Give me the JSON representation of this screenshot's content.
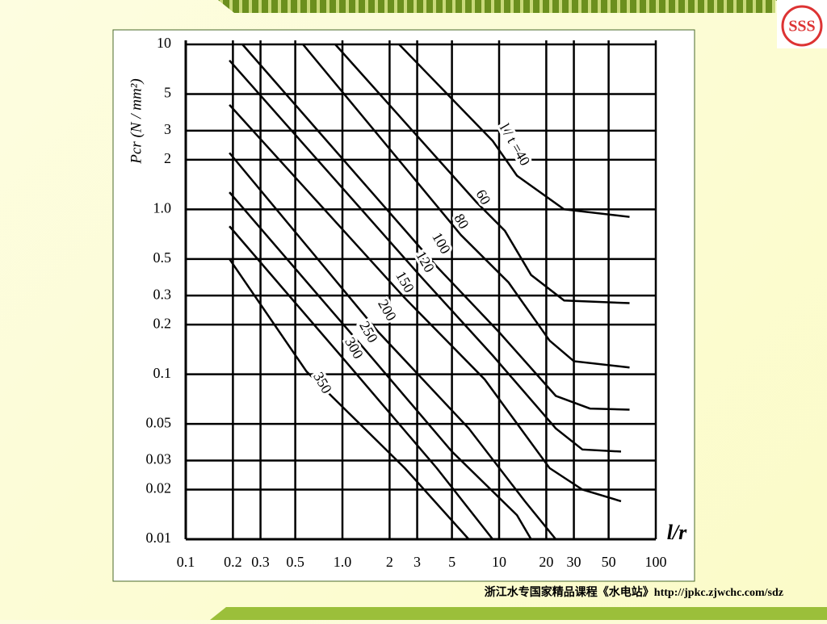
{
  "chart_data": {
    "type": "line",
    "x_label": "l/r",
    "y_label": "Pcr (N / mm²)",
    "xlog": true,
    "ylog": true,
    "grid": true,
    "color": "#000000",
    "xlim": [
      0.1,
      100
    ],
    "ylim": [
      0.01,
      10
    ],
    "xticks": [
      0.1,
      0.2,
      0.3,
      0.5,
      {
        "value": 1,
        "label": "1.0"
      },
      2,
      3,
      5,
      10,
      20,
      30,
      50,
      100
    ],
    "yticks": [
      0.01,
      0.02,
      0.03,
      0.05,
      0.1,
      0.2,
      0.3,
      0.5,
      {
        "value": 1,
        "label": "1.0"
      },
      2,
      3,
      5,
      10
    ],
    "series": [
      {
        "name": "l / t =40",
        "x": [
          2.3,
          9.1,
          13,
          26,
          68
        ],
        "values": [
          10,
          2.6,
          1.6,
          1.0,
          0.9
        ]
      },
      {
        "name": "60",
        "x": [
          0.9,
          7.2,
          10.9,
          16,
          26,
          68
        ],
        "values": [
          10,
          1.1,
          0.74,
          0.4,
          0.28,
          0.27
        ]
      },
      {
        "name": "80",
        "x": [
          0.56,
          5.7,
          11.5,
          21,
          30,
          68
        ],
        "values": [
          10,
          0.7,
          0.36,
          0.16,
          0.12,
          0.11
        ]
      },
      {
        "name": "100",
        "x": [
          0.23,
          4,
          10,
          23,
          38,
          68
        ],
        "values": [
          10,
          0.45,
          0.18,
          0.074,
          0.062,
          0.061
        ]
      },
      {
        "name": "120",
        "x": [
          0.19,
          3.1,
          9.1,
          23,
          34,
          60
        ],
        "values": [
          8,
          0.4,
          0.13,
          0.047,
          0.035,
          0.034
        ]
      },
      {
        "name": "150",
        "x": [
          0.19,
          2.5,
          8.1,
          21,
          34,
          60
        ],
        "values": [
          4.3,
          0.29,
          0.093,
          0.027,
          0.02,
          0.017
        ]
      },
      {
        "name": "200",
        "x": [
          0.19,
          1.7,
          6.4,
          14.6,
          23
        ],
        "values": [
          2.2,
          0.18,
          0.047,
          0.017,
          0.01
        ]
      },
      {
        "name": "250",
        "x": [
          0.19,
          1.36,
          5,
          13,
          16
        ],
        "values": [
          1.27,
          0.145,
          0.034,
          0.014,
          0.01
        ]
      },
      {
        "name": "300",
        "x": [
          0.19,
          1.07,
          4,
          9.1
        ],
        "values": [
          0.79,
          0.117,
          0.027,
          0.01
        ]
      },
      {
        "name": "350",
        "x": [
          0.19,
          0.59,
          2.5,
          6.4
        ],
        "values": [
          0.5,
          0.104,
          0.027,
          0.01
        ]
      }
    ]
  },
  "footer": "浙江水专国家精品课程《水电站》http://jpkc.zjwchc.com/sdz"
}
